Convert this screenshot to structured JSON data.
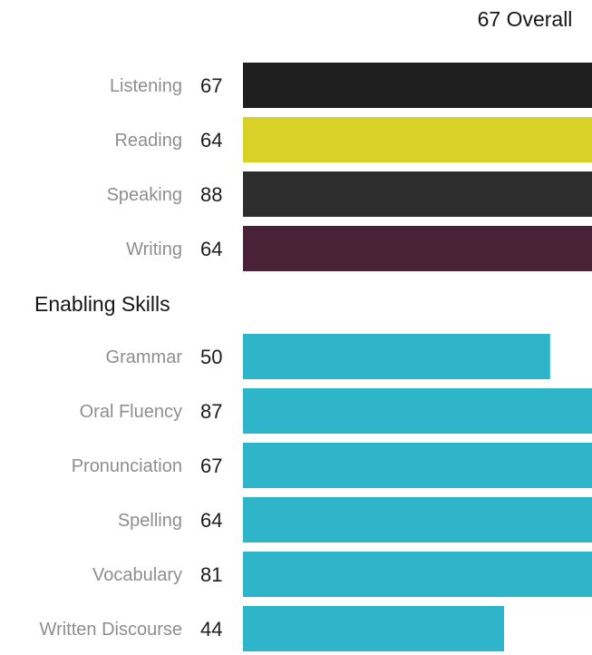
{
  "chart_data": {
    "type": "bar",
    "orientation": "horizontal",
    "overall": {
      "label": "Overall",
      "value": 67
    },
    "x_range": [
      10,
      90
    ],
    "groups": [
      {
        "title": "",
        "items": [
          {
            "name": "Listening",
            "value": 67,
            "color": "#1e1e1e"
          },
          {
            "name": "Reading",
            "value": 64,
            "color": "#d8d127"
          },
          {
            "name": "Speaking",
            "value": 88,
            "color": "#2e2e2e"
          },
          {
            "name": "Writing",
            "value": 64,
            "color": "#4a2238"
          }
        ]
      },
      {
        "title": "Enabling Skills",
        "items": [
          {
            "name": "Grammar",
            "value": 50,
            "color": "#2fb5c9"
          },
          {
            "name": "Oral Fluency",
            "value": 87,
            "color": "#2fb5c9"
          },
          {
            "name": "Pronunciation",
            "value": 67,
            "color": "#2fb5c9"
          },
          {
            "name": "Spelling",
            "value": 64,
            "color": "#2fb5c9"
          },
          {
            "name": "Vocabulary",
            "value": 81,
            "color": "#2fb5c9"
          },
          {
            "name": "Written Discourse",
            "value": 44,
            "color": "#2fb5c9"
          }
        ]
      }
    ],
    "overall_line_color": "#9fb0be"
  }
}
